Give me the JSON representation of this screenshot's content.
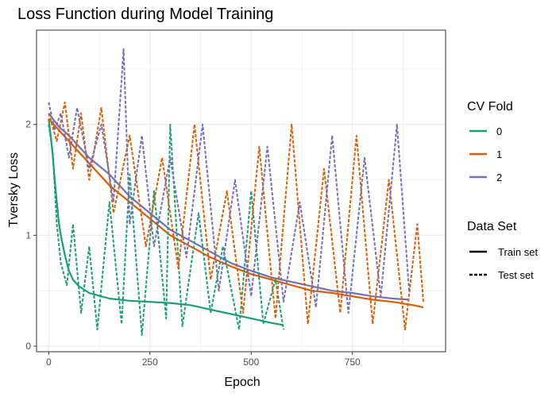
{
  "colors": {
    "fold_0": "#1b9e77",
    "fold_1": "#d95f02",
    "fold_2": "#7570b3",
    "grid": "#ebebeb",
    "panel_border": "#333333"
  },
  "chart_data": {
    "type": "line",
    "title": "Loss Function during Model Training",
    "xlabel": "Epoch",
    "ylabel": "Tversky Loss",
    "xlim": [
      -30,
      980
    ],
    "ylim": [
      -0.05,
      2.85
    ],
    "x_ticks": [
      0,
      250,
      500,
      750
    ],
    "y_ticks": [
      0,
      1,
      2
    ],
    "grid": true,
    "legend_position": "right",
    "legends": [
      {
        "title": "CV Fold",
        "entries": [
          "0",
          "1",
          "2"
        ]
      },
      {
        "title": "Data Set",
        "entries": [
          "Train set",
          "Test set"
        ]
      }
    ],
    "series": [
      {
        "fold": "0",
        "set": "Train set",
        "color": "#1b9e77",
        "dashed": false,
        "x": [
          0,
          5,
          10,
          15,
          20,
          25,
          30,
          40,
          50,
          60,
          75,
          100,
          150,
          200,
          250,
          300,
          350,
          400,
          450,
          500,
          550,
          580
        ],
        "y": [
          2.05,
          1.9,
          1.72,
          1.5,
          1.3,
          1.12,
          1.0,
          0.82,
          0.68,
          0.6,
          0.54,
          0.48,
          0.43,
          0.41,
          0.4,
          0.39,
          0.37,
          0.33,
          0.29,
          0.25,
          0.21,
          0.19
        ]
      },
      {
        "fold": "0",
        "set": "Test set",
        "color": "#1b9e77",
        "dashed": true,
        "x": [
          0,
          10,
          20,
          30,
          45,
          60,
          80,
          100,
          120,
          150,
          180,
          200,
          230,
          260,
          290,
          300,
          330,
          370,
          400,
          430,
          470,
          500,
          530,
          560,
          580
        ],
        "y": [
          2.0,
          1.75,
          1.1,
          0.75,
          0.55,
          1.1,
          0.3,
          0.9,
          0.15,
          1.3,
          0.2,
          1.55,
          0.1,
          1.4,
          0.25,
          2.0,
          0.18,
          1.2,
          0.3,
          0.9,
          0.15,
          1.4,
          0.2,
          0.6,
          0.15
        ]
      },
      {
        "fold": "1",
        "set": "Train set",
        "color": "#d95f02",
        "dashed": false,
        "x": [
          0,
          25,
          50,
          75,
          100,
          150,
          200,
          250,
          300,
          350,
          400,
          450,
          500,
          550,
          600,
          650,
          700,
          750,
          800,
          850,
          900,
          925
        ],
        "y": [
          2.05,
          1.95,
          1.85,
          1.75,
          1.65,
          1.45,
          1.3,
          1.15,
          1.0,
          0.9,
          0.8,
          0.72,
          0.65,
          0.6,
          0.55,
          0.5,
          0.48,
          0.45,
          0.42,
          0.4,
          0.37,
          0.35
        ]
      },
      {
        "fold": "1",
        "set": "Test set",
        "color": "#d95f02",
        "dashed": true,
        "x": [
          0,
          20,
          40,
          60,
          80,
          100,
          130,
          160,
          200,
          240,
          280,
          320,
          360,
          400,
          440,
          480,
          520,
          560,
          600,
          640,
          680,
          720,
          760,
          800,
          840,
          880,
          910,
          925
        ],
        "y": [
          2.1,
          1.85,
          2.2,
          1.6,
          2.1,
          1.5,
          2.15,
          1.2,
          1.9,
          0.9,
          1.7,
          0.7,
          2.0,
          0.6,
          1.4,
          0.3,
          1.8,
          0.25,
          2.0,
          0.2,
          1.6,
          0.3,
          1.9,
          0.2,
          1.5,
          0.15,
          1.1,
          0.4
        ]
      },
      {
        "fold": "2",
        "set": "Train set",
        "color": "#7570b3",
        "dashed": false,
        "x": [
          0,
          25,
          50,
          100,
          150,
          200,
          250,
          300,
          350,
          400,
          450,
          500,
          550,
          600,
          650,
          700,
          750,
          800,
          850,
          890
        ],
        "y": [
          2.1,
          1.98,
          1.9,
          1.7,
          1.55,
          1.35,
          1.2,
          1.05,
          0.95,
          0.85,
          0.75,
          0.68,
          0.62,
          0.58,
          0.54,
          0.5,
          0.48,
          0.45,
          0.43,
          0.42
        ]
      },
      {
        "fold": "2",
        "set": "Test set",
        "color": "#7570b3",
        "dashed": true,
        "x": [
          0,
          15,
          30,
          50,
          70,
          100,
          130,
          160,
          185,
          200,
          230,
          260,
          300,
          340,
          380,
          420,
          460,
          500,
          540,
          580,
          620,
          660,
          700,
          740,
          780,
          820,
          860,
          890
        ],
        "y": [
          2.2,
          1.95,
          2.1,
          1.7,
          2.15,
          1.6,
          2.0,
          1.3,
          2.68,
          1.1,
          1.9,
          0.9,
          1.7,
          0.8,
          2.0,
          0.5,
          1.5,
          0.45,
          1.8,
          0.4,
          1.3,
          0.35,
          1.9,
          0.3,
          1.7,
          0.45,
          2.0,
          0.5
        ]
      }
    ]
  }
}
